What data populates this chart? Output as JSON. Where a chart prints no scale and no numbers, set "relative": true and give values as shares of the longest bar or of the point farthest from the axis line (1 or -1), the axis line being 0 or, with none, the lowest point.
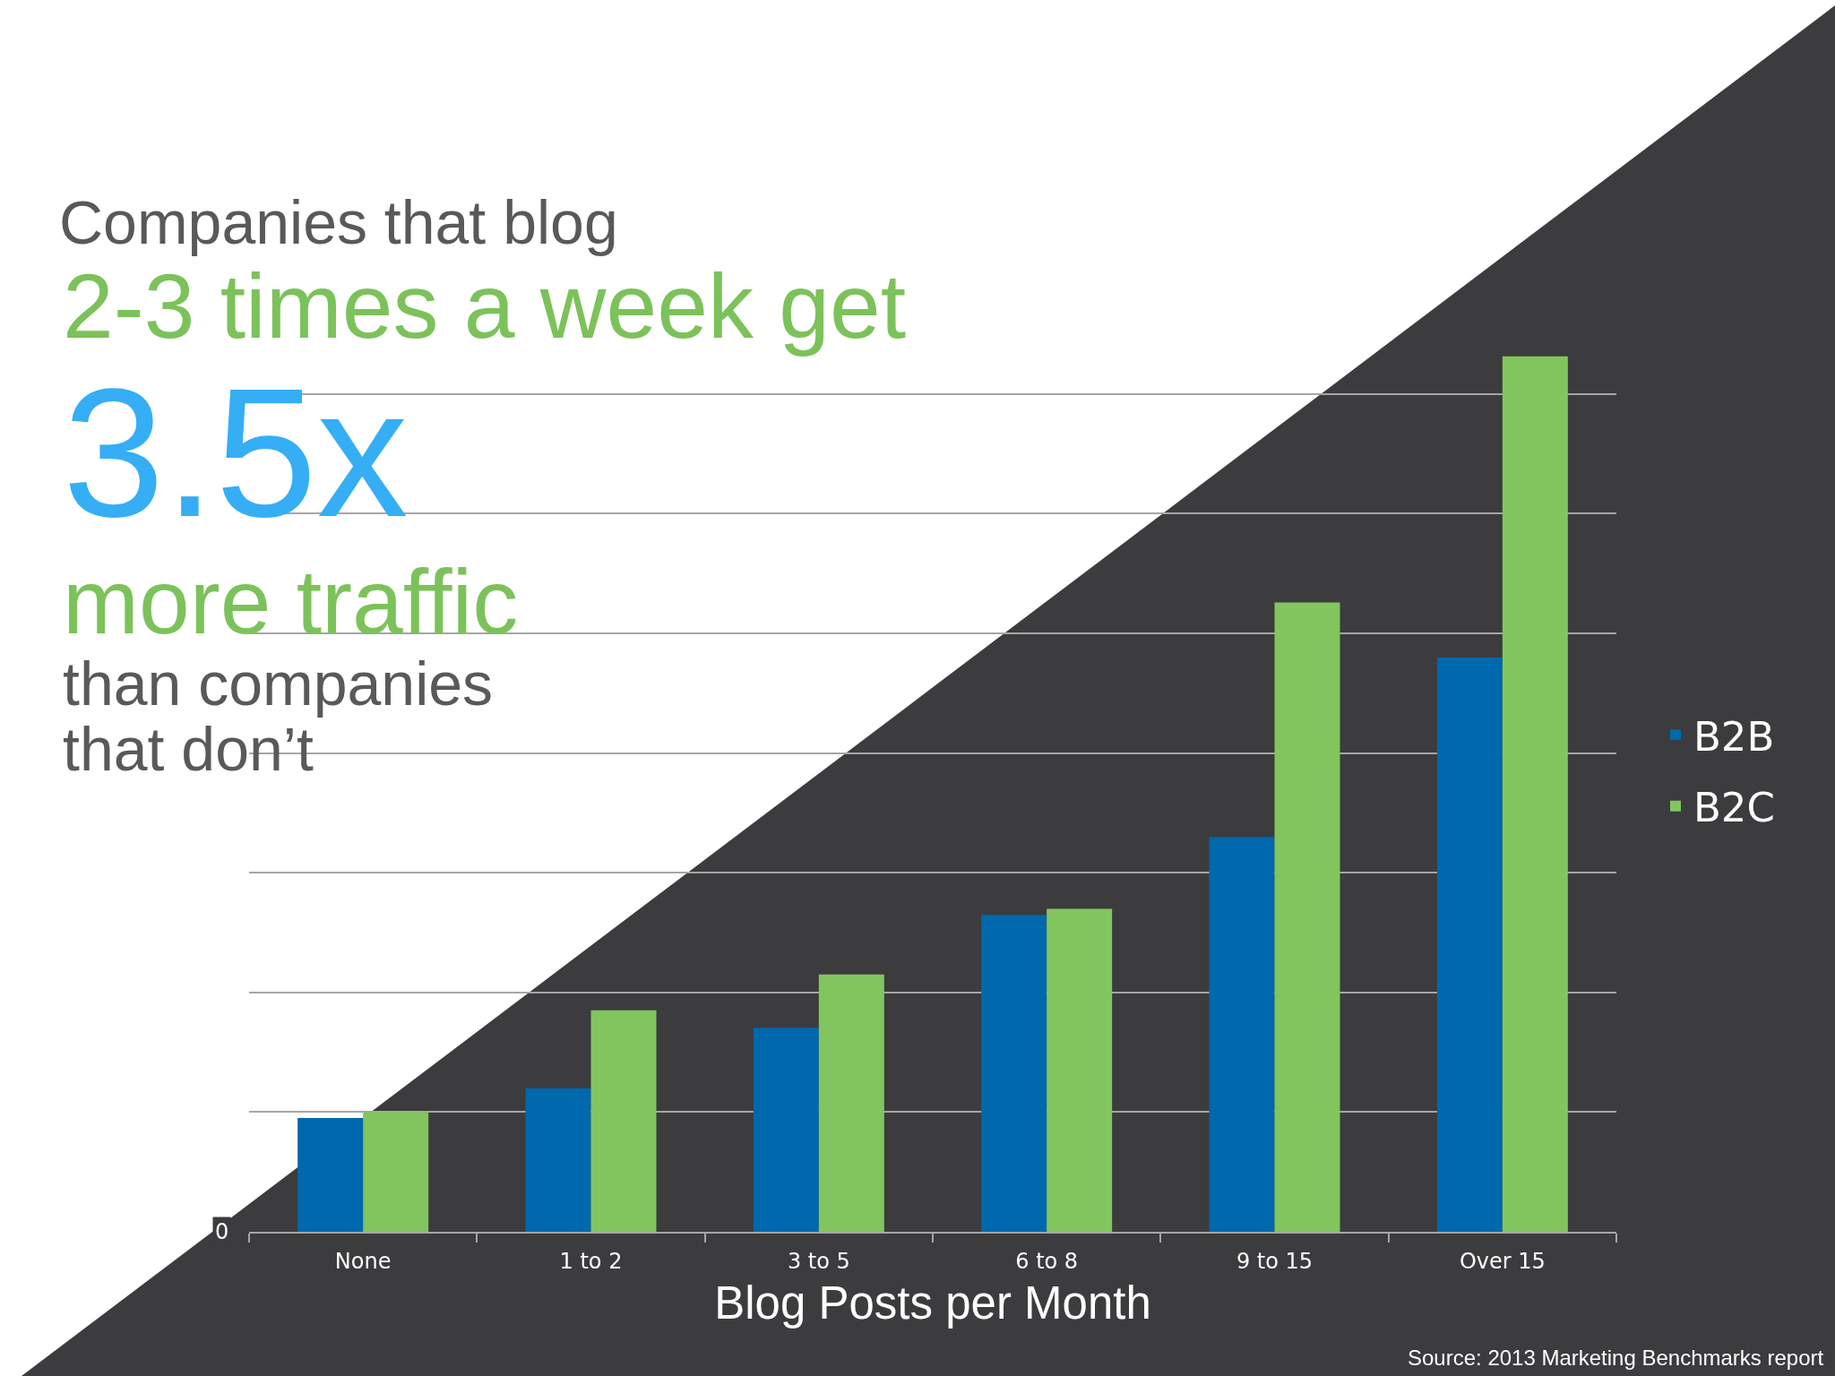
{
  "chart_data": {
    "type": "bar",
    "title": "Companies that blog",
    "xlabel": "Blog Posts per Month",
    "categories": [
      "None",
      "1 to 2",
      "3 to 5",
      "6 to 8",
      "9 to 15",
      "Over 15"
    ],
    "relative": true,
    "series": [
      {
        "name": "B2B",
        "color": "#0068ac",
        "values": [
          0.13,
          0.164,
          0.233,
          0.362,
          0.451,
          0.656
        ]
      },
      {
        "name": "B2C",
        "color": "#82c55e",
        "values": [
          0.137,
          0.253,
          0.294,
          0.369,
          0.719,
          1
        ]
      }
    ],
    "grid": "y",
    "legend": "right",
    "annotations": [
      "2-3 times a week get",
      "3.5x",
      "more traffic",
      "than companies",
      "that don’t",
      "0",
      "Source: 2013 Marketing Benchmarks report"
    ]
  }
}
